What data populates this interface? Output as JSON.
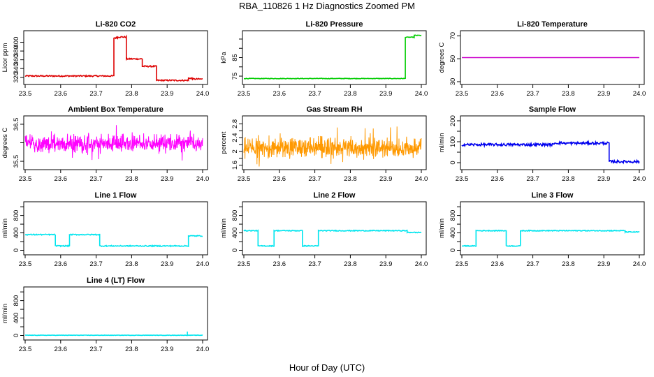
{
  "figure": {
    "title": "RBA_110826  1 Hz Diagnostics Zoomed PM",
    "xlabel": "Hour of Day (UTC)"
  },
  "chart_data": [
    {
      "type": "line",
      "title": "Li-820 CO2",
      "ylabel": "Licor ppm",
      "color": "#dd0000",
      "xlim": [
        23.5,
        24.0
      ],
      "ylim": [
        310,
        420
      ],
      "yticks": [
        320,
        340,
        360,
        380,
        400
      ],
      "x_ticks": [
        23.5,
        23.6,
        23.7,
        23.8,
        23.9,
        24.0
      ],
      "noise": 1.5,
      "segments": [
        [
          23.5,
          23.75,
          323
        ],
        [
          23.75,
          23.76,
          410
        ],
        [
          23.76,
          23.785,
          412
        ],
        [
          23.785,
          23.83,
          362
        ],
        [
          23.83,
          23.87,
          345
        ],
        [
          23.87,
          23.96,
          313
        ],
        [
          23.96,
          23.97,
          318
        ],
        [
          23.97,
          24.0,
          316
        ]
      ]
    },
    {
      "type": "line",
      "title": "Li-820 Pressure",
      "ylabel": "kPa",
      "color": "#00cc00",
      "xlim": [
        23.5,
        24.0
      ],
      "ylim": [
        72,
        98
      ],
      "yticks": [
        75,
        85
      ],
      "hidden_ticks": [
        80,
        90,
        95
      ],
      "x_ticks": [
        23.5,
        23.6,
        23.7,
        23.8,
        23.9,
        24.0
      ],
      "noise": 0.15,
      "segments": [
        [
          23.5,
          23.955,
          73.7
        ],
        [
          23.955,
          23.98,
          96
        ],
        [
          23.98,
          24.0,
          97
        ]
      ]
    },
    {
      "type": "line",
      "title": "Li-820 Temperature",
      "ylabel": "degrees C",
      "color": "#cc00cc",
      "xlim": [
        23.5,
        24.0
      ],
      "ylim": [
        30,
        72
      ],
      "yticks": [
        30,
        50,
        70
      ],
      "x_ticks": [
        23.5,
        23.6,
        23.7,
        23.8,
        23.9,
        24.0
      ],
      "noise": 0,
      "segments": [
        [
          23.5,
          24.0,
          51
        ]
      ]
    },
    {
      "type": "noise",
      "title": "Ambient Box Temperature",
      "ylabel": "degrees C",
      "color": "#ff00ff",
      "xlim": [
        23.5,
        24.0
      ],
      "ylim": [
        35.35,
        36.65
      ],
      "yticks": [
        35.5,
        36.5
      ],
      "hidden_ticks": [
        36.0
      ],
      "x_ticks": [
        23.5,
        23.6,
        23.7,
        23.8,
        23.9,
        24.0
      ],
      "center": 35.98,
      "amp": 0.35
    },
    {
      "type": "noise",
      "title": "Gas Stream RH",
      "ylabel": "percent",
      "color": "#ff9900",
      "xlim": [
        23.5,
        24.0
      ],
      "ylim": [
        1.55,
        2.95
      ],
      "yticks": [
        1.6,
        2.0,
        2.4,
        2.8
      ],
      "hidden_ticks": [
        1.8,
        2.2,
        2.6
      ],
      "x_ticks": [
        23.5,
        23.6,
        23.7,
        23.8,
        23.9,
        24.0
      ],
      "center": 2.1,
      "amp": 0.45
    },
    {
      "type": "line",
      "title": "Sample Flow",
      "ylabel": "ml/min",
      "color": "#0000ee",
      "xlim": [
        23.5,
        24.0
      ],
      "ylim": [
        -20,
        210
      ],
      "yticks": [
        0,
        100,
        200
      ],
      "hidden_ticks": [
        50,
        150
      ],
      "x_ticks": [
        23.5,
        23.6,
        23.7,
        23.8,
        23.9,
        24.0
      ],
      "noise": 6,
      "segments": [
        [
          23.5,
          23.76,
          86
        ],
        [
          23.76,
          23.79,
          94
        ],
        [
          23.79,
          23.915,
          93
        ],
        [
          23.915,
          24.0,
          5
        ]
      ]
    },
    {
      "type": "line",
      "title": "Line 1 Flow",
      "ylabel": "ml/min",
      "color": "#00e5ee",
      "xlim": [
        23.5,
        24.0
      ],
      "ylim": [
        -40,
        1050
      ],
      "yticks": [
        0,
        400,
        800
      ],
      "hidden_ticks": [
        200,
        600,
        1000
      ],
      "x_ticks": [
        23.5,
        23.6,
        23.7,
        23.8,
        23.9,
        24.0
      ],
      "noise": 12,
      "segments": [
        [
          23.5,
          23.585,
          360
        ],
        [
          23.585,
          23.625,
          100
        ],
        [
          23.625,
          23.71,
          360
        ],
        [
          23.71,
          23.96,
          100
        ],
        [
          23.96,
          24.0,
          330
        ]
      ]
    },
    {
      "type": "line",
      "title": "Line 2 Flow",
      "ylabel": "ml/min",
      "color": "#00e5ee",
      "xlim": [
        23.5,
        24.0
      ],
      "ylim": [
        -40,
        1050
      ],
      "yticks": [
        0,
        400,
        800
      ],
      "hidden_ticks": [
        200,
        600,
        1000
      ],
      "x_ticks": [
        23.5,
        23.6,
        23.7,
        23.8,
        23.9,
        24.0
      ],
      "noise": 10,
      "segments": [
        [
          23.5,
          23.54,
          450
        ],
        [
          23.54,
          23.585,
          100
        ],
        [
          23.585,
          23.665,
          450
        ],
        [
          23.665,
          23.71,
          100
        ],
        [
          23.71,
          23.96,
          450
        ],
        [
          23.96,
          24.0,
          410
        ]
      ]
    },
    {
      "type": "line",
      "title": "Line 3 Flow",
      "ylabel": "ml/min",
      "color": "#00e5ee",
      "xlim": [
        23.5,
        24.0
      ],
      "ylim": [
        -40,
        1050
      ],
      "yticks": [
        0,
        400,
        800
      ],
      "hidden_ticks": [
        200,
        600,
        1000
      ],
      "x_ticks": [
        23.5,
        23.6,
        23.7,
        23.8,
        23.9,
        24.0
      ],
      "noise": 10,
      "segments": [
        [
          23.5,
          23.54,
          100
        ],
        [
          23.54,
          23.625,
          450
        ],
        [
          23.625,
          23.665,
          100
        ],
        [
          23.665,
          23.96,
          450
        ],
        [
          23.96,
          24.0,
          420
        ]
      ]
    },
    {
      "type": "line",
      "title": "Line 4 (LT) Flow",
      "ylabel": "ml/min",
      "color": "#00e5ee",
      "xlim": [
        23.5,
        24.0
      ],
      "ylim": [
        -40,
        1050
      ],
      "yticks": [
        0,
        400,
        800
      ],
      "hidden_ticks": [
        200,
        600,
        1000
      ],
      "x_ticks": [
        23.5,
        23.6,
        23.7,
        23.8,
        23.9,
        24.0
      ],
      "noise": 4,
      "segments": [
        [
          23.5,
          24.0,
          5
        ]
      ],
      "spikes": [
        [
          23.957,
          90
        ]
      ]
    }
  ]
}
